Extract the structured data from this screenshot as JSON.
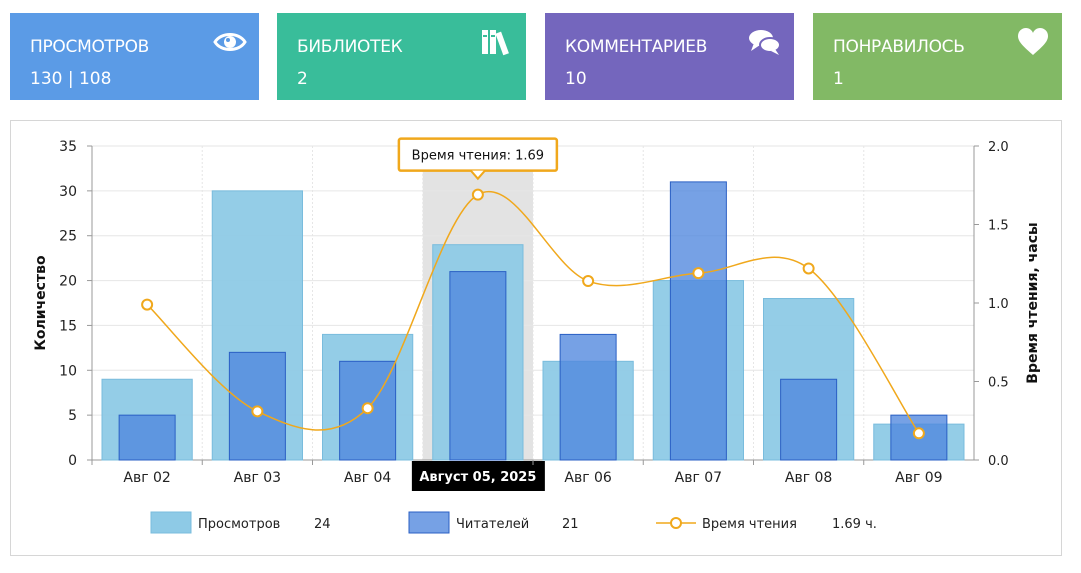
{
  "stats": [
    {
      "title": "ПРОСМОТРОВ",
      "value": "130 | 108",
      "icon": "eye-icon",
      "color": "#5b9be6"
    },
    {
      "title": "БИБЛИОТЕК",
      "value": "2",
      "icon": "books-icon",
      "color": "#39bd9a"
    },
    {
      "title": "КОММЕНТАРИЕВ",
      "value": "10",
      "icon": "comments-icon",
      "color": "#7466bd"
    },
    {
      "title": "ПОНРАВИЛОСЬ",
      "value": "1",
      "icon": "heart-icon",
      "color": "#82b965"
    }
  ],
  "chart_data": {
    "type": "bar",
    "categories": [
      "Авг 02",
      "Авг 03",
      "Авг 04",
      "Август 05, 2025",
      "Авг 06",
      "Авг 07",
      "Авг 08",
      "Авг 09"
    ],
    "highlighted_index": 3,
    "ylabel_left": "Количество",
    "ylabel_right": "Время чтения, часы",
    "ylim_left": [
      0,
      35
    ],
    "ylim_right": [
      0,
      2.0
    ],
    "yticks_left": [
      "0",
      "5",
      "10",
      "15",
      "20",
      "25",
      "30",
      "35"
    ],
    "yticks_right": [
      "0.0",
      "0.5",
      "1.0",
      "1.5",
      "2.0"
    ],
    "series": [
      {
        "name": "Просмотров",
        "type": "bar",
        "axis": "left",
        "color": "#8ecae6",
        "values": [
          9,
          30,
          14,
          24,
          11,
          20,
          18,
          4
        ]
      },
      {
        "name": "Читателей",
        "type": "bar",
        "axis": "left",
        "color": "#4f86de",
        "values": [
          5,
          12,
          11,
          21,
          14,
          31,
          9,
          5
        ]
      },
      {
        "name": "Время чтения",
        "type": "line",
        "axis": "right",
        "color": "#f0a81c",
        "values": [
          0.99,
          0.31,
          0.33,
          1.69,
          1.14,
          1.19,
          1.22,
          0.17
        ]
      }
    ],
    "tooltip": "Время чтения: 1.69",
    "legend": [
      {
        "label": "Просмотров",
        "value": "24"
      },
      {
        "label": "Читателей",
        "value": "21"
      },
      {
        "label": "Время чтения",
        "value": "1.69 ч."
      }
    ],
    "legend_position": "bottom",
    "grid": true
  }
}
